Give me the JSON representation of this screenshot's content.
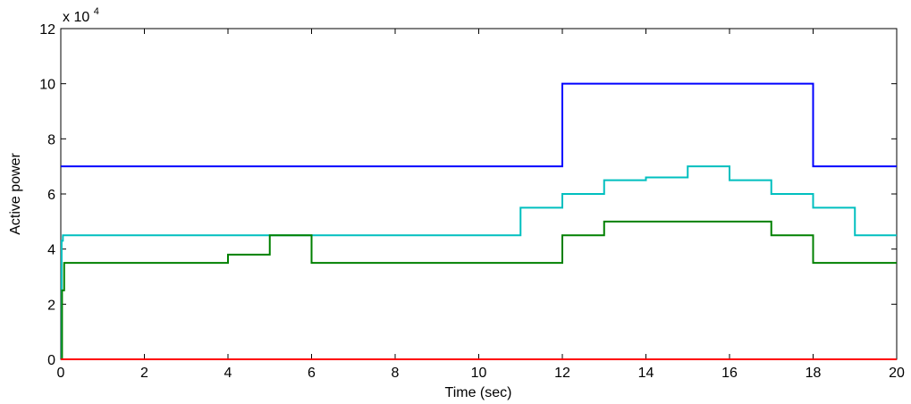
{
  "chart_data": {
    "type": "line",
    "xlabel": "Time (sec)",
    "ylabel": "Active power",
    "y_exponent_label": {
      "base": "x 10",
      "power": "4"
    },
    "xlim": [
      0,
      20
    ],
    "ylim": [
      0,
      12
    ],
    "x_ticks": [
      0,
      2,
      4,
      6,
      8,
      10,
      12,
      14,
      16,
      18,
      20
    ],
    "y_ticks": [
      0,
      2,
      4,
      6,
      8,
      10,
      12
    ],
    "x_tick_labels": [
      "0",
      "2",
      "4",
      "6",
      "8",
      "10",
      "12",
      "14",
      "16",
      "18",
      "20"
    ],
    "y_tick_labels": [
      "0",
      "2",
      "4",
      "6",
      "8",
      "10",
      "12"
    ],
    "grid": false,
    "series": [
      {
        "color": "#0000ff",
        "step": true,
        "x": [
          0,
          12,
          18,
          20
        ],
        "y": [
          7,
          10,
          7,
          7
        ]
      },
      {
        "color": "#00bfbf",
        "step": true,
        "x": [
          0,
          0.02,
          0.05,
          11,
          12,
          13,
          14,
          15,
          16,
          17,
          18,
          19,
          20
        ],
        "y": [
          0,
          4.3,
          4.5,
          5.5,
          6.0,
          6.5,
          6.6,
          7.0,
          6.5,
          6.0,
          5.5,
          4.5,
          4.5
        ]
      },
      {
        "color": "#008000",
        "step": true,
        "x": [
          0,
          0.03,
          0.08,
          4,
          5,
          6,
          12,
          13,
          17,
          18,
          20
        ],
        "y": [
          0,
          2.5,
          3.5,
          3.8,
          4.5,
          3.5,
          4.5,
          5.0,
          4.5,
          3.5,
          3.5
        ]
      },
      {
        "color": "#ff0000",
        "step": false,
        "x": [
          0,
          20
        ],
        "y": [
          0,
          0
        ]
      }
    ]
  }
}
